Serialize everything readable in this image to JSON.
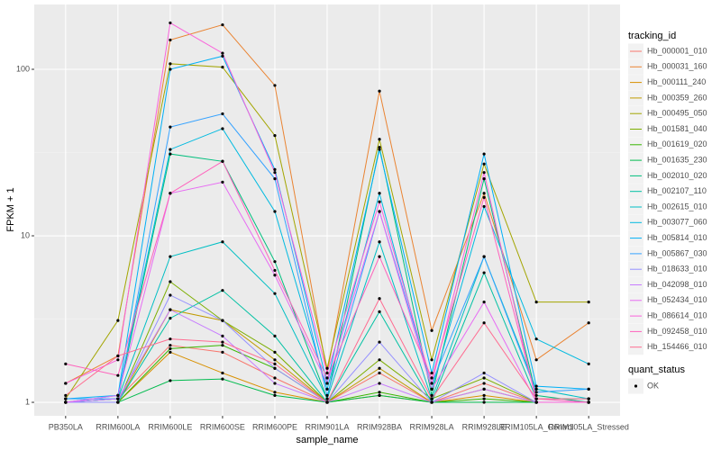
{
  "chart_data": {
    "type": "line",
    "x_label": "sample_name",
    "y_label": "FPKM + 1",
    "categories": [
      "PB350LA",
      "RRIM600LA",
      "RRIM600LE",
      "RRIM600SE",
      "RRIM600PE",
      "RRIM901LA",
      "RRIM928BA",
      "RRIM928LA",
      "RRIM928LE",
      "RRIM105LA_Control",
      "RRIM105LA_Stressed"
    ],
    "log_y": true,
    "ylim": [
      0.83,
      245
    ],
    "yticks": [
      1,
      10,
      100
    ],
    "grid": true,
    "legend_title": "tracking_id",
    "shape_legend": {
      "title": "quant_status",
      "labels": [
        "OK"
      ]
    },
    "series": [
      {
        "name": "Hb_000001_010",
        "color": "#F8766D",
        "values": [
          1.0,
          1.05,
          2.2,
          2.0,
          1.4,
          1.0,
          1.5,
          1.0,
          1.3,
          1.0,
          1.0
        ]
      },
      {
        "name": "Hb_000031_160",
        "color": "#EA8331",
        "values": [
          1.3,
          1.9,
          150,
          185,
          80,
          1.5,
          74,
          2.7,
          18,
          1.8,
          3.0
        ]
      },
      {
        "name": "Hb_000111_240",
        "color": "#D89000",
        "values": [
          1.0,
          1.0,
          2.0,
          1.5,
          1.15,
          1.0,
          1.1,
          1.0,
          1.1,
          1.0,
          1.0
        ]
      },
      {
        "name": "Hb_000359_260",
        "color": "#C09B00",
        "values": [
          1.0,
          1.0,
          3.6,
          3.1,
          1.8,
          1.0,
          1.6,
          1.0,
          1.2,
          1.0,
          1.0
        ]
      },
      {
        "name": "Hb_000495_050",
        "color": "#A3A500",
        "values": [
          1.05,
          3.1,
          108,
          103,
          40,
          1.6,
          38,
          1.8,
          27,
          4.0,
          4.0
        ]
      },
      {
        "name": "Hb_001581_040",
        "color": "#7CAE00",
        "values": [
          1.0,
          1.0,
          5.3,
          3.1,
          2.0,
          1.0,
          1.8,
          1.05,
          1.4,
          1.0,
          1.0
        ]
      },
      {
        "name": "Hb_001619_020",
        "color": "#39B600",
        "values": [
          1.0,
          1.0,
          2.1,
          2.2,
          1.6,
          1.0,
          1.15,
          1.0,
          1.05,
          1.0,
          1.0
        ]
      },
      {
        "name": "Hb_001635_230",
        "color": "#00BB4E",
        "values": [
          1.0,
          1.0,
          1.35,
          1.38,
          1.1,
          1.0,
          1.1,
          1.0,
          1.0,
          1.0,
          1.0
        ]
      },
      {
        "name": "Hb_002010_020",
        "color": "#00BF7D",
        "values": [
          1.0,
          1.05,
          31,
          28,
          7,
          1.05,
          34,
          1.1,
          22,
          1.1,
          1.0
        ]
      },
      {
        "name": "Hb_002107_110",
        "color": "#00C1A3",
        "values": [
          1.0,
          1.0,
          3.2,
          4.7,
          2.5,
          1.0,
          3.5,
          1.0,
          6.0,
          1.05,
          1.05
        ]
      },
      {
        "name": "Hb_002615_010",
        "color": "#00BFC4",
        "values": [
          1.0,
          1.05,
          7.5,
          9.2,
          4.5,
          1.05,
          9.2,
          1.05,
          7.5,
          1.2,
          1.05
        ]
      },
      {
        "name": "Hb_003077_060",
        "color": "#00BAE0",
        "values": [
          1.0,
          1.1,
          33,
          44,
          14,
          1.2,
          18,
          1.2,
          15,
          2.4,
          1.7
        ]
      },
      {
        "name": "Hb_005814_010",
        "color": "#00B0F6",
        "values": [
          1.05,
          1.1,
          100,
          120,
          25,
          1.3,
          33,
          1.5,
          31,
          1.25,
          1.2
        ]
      },
      {
        "name": "Hb_005867_030",
        "color": "#35A2FF",
        "values": [
          1.05,
          1.05,
          45,
          54,
          22,
          1.1,
          14,
          1.3,
          7.5,
          1.15,
          1.2
        ]
      },
      {
        "name": "Hb_018633_010",
        "color": "#9590FF",
        "values": [
          1.0,
          1.0,
          4.4,
          3.1,
          1.6,
          1.0,
          2.3,
          1.0,
          1.5,
          1.0,
          1.0
        ]
      },
      {
        "name": "Hb_042098_010",
        "color": "#C77CFF",
        "values": [
          1.0,
          1.05,
          3.6,
          2.5,
          1.3,
          1.0,
          1.3,
          1.0,
          1.2,
          1.0,
          1.0
        ]
      },
      {
        "name": "Hb_052434_010",
        "color": "#E76BF3",
        "values": [
          1.0,
          1.1,
          18,
          21,
          5.8,
          1.3,
          14,
          1.2,
          4.0,
          1.0,
          1.0
        ]
      },
      {
        "name": "Hb_086614_010",
        "color": "#FA62DB",
        "values": [
          1.3,
          1.8,
          190,
          125,
          24,
          1.5,
          16,
          1.3,
          24,
          1.0,
          1.0
        ]
      },
      {
        "name": "Hb_092458_010",
        "color": "#FF62BC",
        "values": [
          1.7,
          1.45,
          18,
          28,
          6.2,
          1.4,
          7.5,
          1.4,
          17,
          1.05,
          1.0
        ]
      },
      {
        "name": "Hb_154466_010",
        "color": "#FF6C91",
        "values": [
          1.1,
          1.9,
          2.4,
          2.3,
          1.7,
          1.0,
          4.2,
          1.05,
          3.0,
          1.05,
          1.05
        ]
      }
    ]
  }
}
